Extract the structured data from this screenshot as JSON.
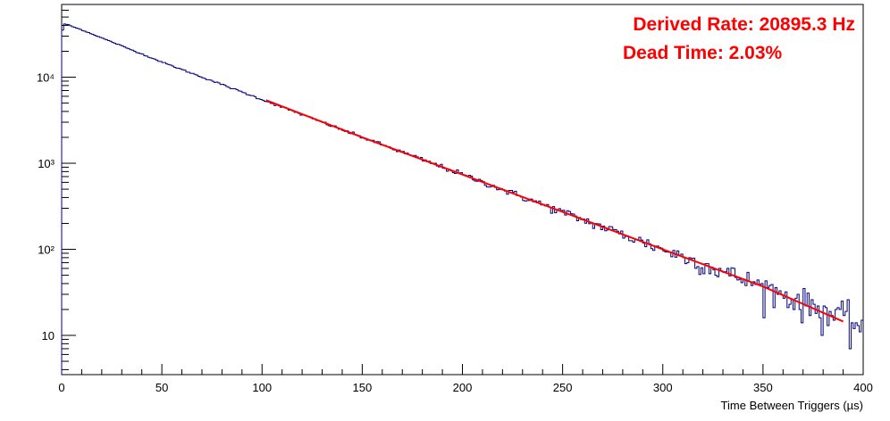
{
  "colors": {
    "histogram": "#00007f",
    "fit": "#ff0000",
    "annotation": "#ff0000",
    "axes": "#000000"
  },
  "chart_data": {
    "type": "line",
    "title": "",
    "xlabel": "Time Between Triggers (µs)",
    "ylabel": "",
    "xlim": [
      0,
      400
    ],
    "ylim": [
      3.5,
      70000
    ],
    "yscale": "log",
    "grid": false,
    "legend": "none",
    "x_ticks": [
      "0",
      "50",
      "100",
      "150",
      "200",
      "250",
      "300",
      "350",
      "400"
    ],
    "y_ticks": [
      {
        "value": 10,
        "label": "10"
      },
      {
        "value": 100,
        "label": "10²"
      },
      {
        "value": 1000,
        "label": "10³"
      },
      {
        "value": 10000,
        "label": "10⁴"
      }
    ],
    "annotations": [
      "Derived Rate: 20895.3 Hz",
      "Dead Time: 2.03%"
    ],
    "histogram": {
      "bin_width": 1,
      "range": [
        0,
        400
      ],
      "anchors": [
        [
          0,
          30000
        ],
        [
          1,
          41500
        ],
        [
          3,
          41000
        ],
        [
          5,
          39000
        ],
        [
          10,
          35500
        ],
        [
          50,
          15000
        ],
        [
          100,
          5500
        ],
        [
          150,
          2000
        ],
        [
          200,
          740
        ],
        [
          250,
          270
        ],
        [
          300,
          100
        ],
        [
          350,
          37
        ],
        [
          400,
          13
        ]
      ],
      "noise": "poisson"
    },
    "fit": {
      "type": "exponential",
      "x_range": [
        102,
        390
      ],
      "points": [
        [
          102,
          5400
        ],
        [
          150,
          2000
        ],
        [
          200,
          740
        ],
        [
          250,
          272
        ],
        [
          300,
          100
        ],
        [
          350,
          37
        ],
        [
          390,
          14.5
        ]
      ]
    }
  }
}
